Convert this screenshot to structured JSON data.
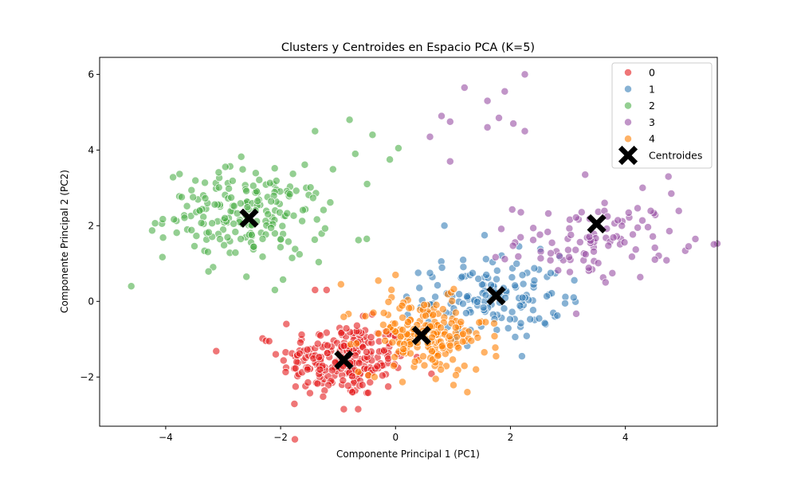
{
  "chart_data": {
    "type": "scatter",
    "title": "Clusters y Centroides en Espacio PCA (K=5)",
    "xlabel": "Componente Principal 1 (PC1)",
    "ylabel": "Componente Principal 2 (PC2)",
    "xlim": [
      -5.15,
      5.6
    ],
    "ylim": [
      -3.3,
      6.45
    ],
    "xticks": [
      -4,
      -2,
      0,
      2,
      4
    ],
    "yticks": [
      -2,
      0,
      2,
      4,
      6
    ],
    "xtick_labels": [
      "−4",
      "−2",
      "0",
      "2",
      "4"
    ],
    "ytick_labels": [
      "−2",
      "0",
      "2",
      "4",
      "6"
    ],
    "grid": false,
    "legend_position": "top-right",
    "series": [
      {
        "name": "0",
        "color": "#e41a1c",
        "center": [
          -0.9,
          -1.55
        ],
        "spread": [
          0.55,
          0.5
        ],
        "count": 240,
        "extra": [
          [
            -2.2,
            -1.05
          ],
          [
            -1.4,
            0.3
          ],
          [
            -0.9,
            -2.85
          ],
          [
            -0.65,
            -2.85
          ],
          [
            -1.9,
            -0.6
          ],
          [
            -1.2,
            0.3
          ],
          [
            -0.2,
            -1.3
          ]
        ]
      },
      {
        "name": "1",
        "color": "#377eb8",
        "center": [
          1.7,
          0.1
        ],
        "spread": [
          0.6,
          0.55
        ],
        "count": 140,
        "extra": [
          [
            0.85,
            2.0
          ],
          [
            1.55,
            1.75
          ],
          [
            2.15,
            1.45
          ],
          [
            3.1,
            0.1
          ],
          [
            2.95,
            -0.05
          ],
          [
            2.2,
            -1.45
          ],
          [
            0.6,
            0.75
          ],
          [
            2.7,
            0.75
          ]
        ]
      },
      {
        "name": "2",
        "color": "#4daf4a",
        "center": [
          -2.6,
          2.3
        ],
        "spread": [
          0.7,
          0.6
        ],
        "count": 200,
        "extra": [
          [
            -4.6,
            0.4
          ],
          [
            -0.8,
            4.8
          ],
          [
            -0.4,
            4.4
          ],
          [
            0.05,
            4.05
          ],
          [
            -1.4,
            4.5
          ],
          [
            -0.5,
            1.65
          ],
          [
            -2.1,
            0.3
          ],
          [
            -0.7,
            3.9
          ],
          [
            -0.1,
            3.75
          ],
          [
            -1.8,
            1.15
          ]
        ]
      },
      {
        "name": "3",
        "color": "#984ea3",
        "center": [
          3.5,
          1.6
        ],
        "spread": [
          0.7,
          0.5
        ],
        "count": 100,
        "extra": [
          [
            1.2,
            5.65
          ],
          [
            1.6,
            5.3
          ],
          [
            1.9,
            5.55
          ],
          [
            2.25,
            6.0
          ],
          [
            1.6,
            4.6
          ],
          [
            1.8,
            4.85
          ],
          [
            2.05,
            4.7
          ],
          [
            2.25,
            4.5
          ],
          [
            0.95,
            4.75
          ],
          [
            0.8,
            4.9
          ],
          [
            0.6,
            4.35
          ],
          [
            0.95,
            3.7
          ],
          [
            3.3,
            3.35
          ],
          [
            4.75,
            3.3
          ],
          [
            4.8,
            2.85
          ],
          [
            4.3,
            3.0
          ],
          [
            5.1,
            1.45
          ]
        ]
      },
      {
        "name": "4",
        "color": "#ff7f00",
        "center": [
          0.5,
          -0.9
        ],
        "spread": [
          0.55,
          0.5
        ],
        "count": 190,
        "extra": [
          [
            -0.95,
            0.45
          ],
          [
            0.0,
            0.7
          ],
          [
            -0.3,
            0.55
          ],
          [
            1.4,
            -1.8
          ],
          [
            1.75,
            -1.45
          ],
          [
            0.7,
            -2.05
          ],
          [
            1.05,
            -1.95
          ]
        ]
      }
    ],
    "centroids": {
      "name": "Centroides",
      "color": "#000000",
      "points": [
        [
          -0.9,
          -1.55
        ],
        [
          1.75,
          0.15
        ],
        [
          -2.55,
          2.2
        ],
        [
          3.5,
          2.05
        ],
        [
          0.45,
          -0.9
        ]
      ]
    }
  }
}
